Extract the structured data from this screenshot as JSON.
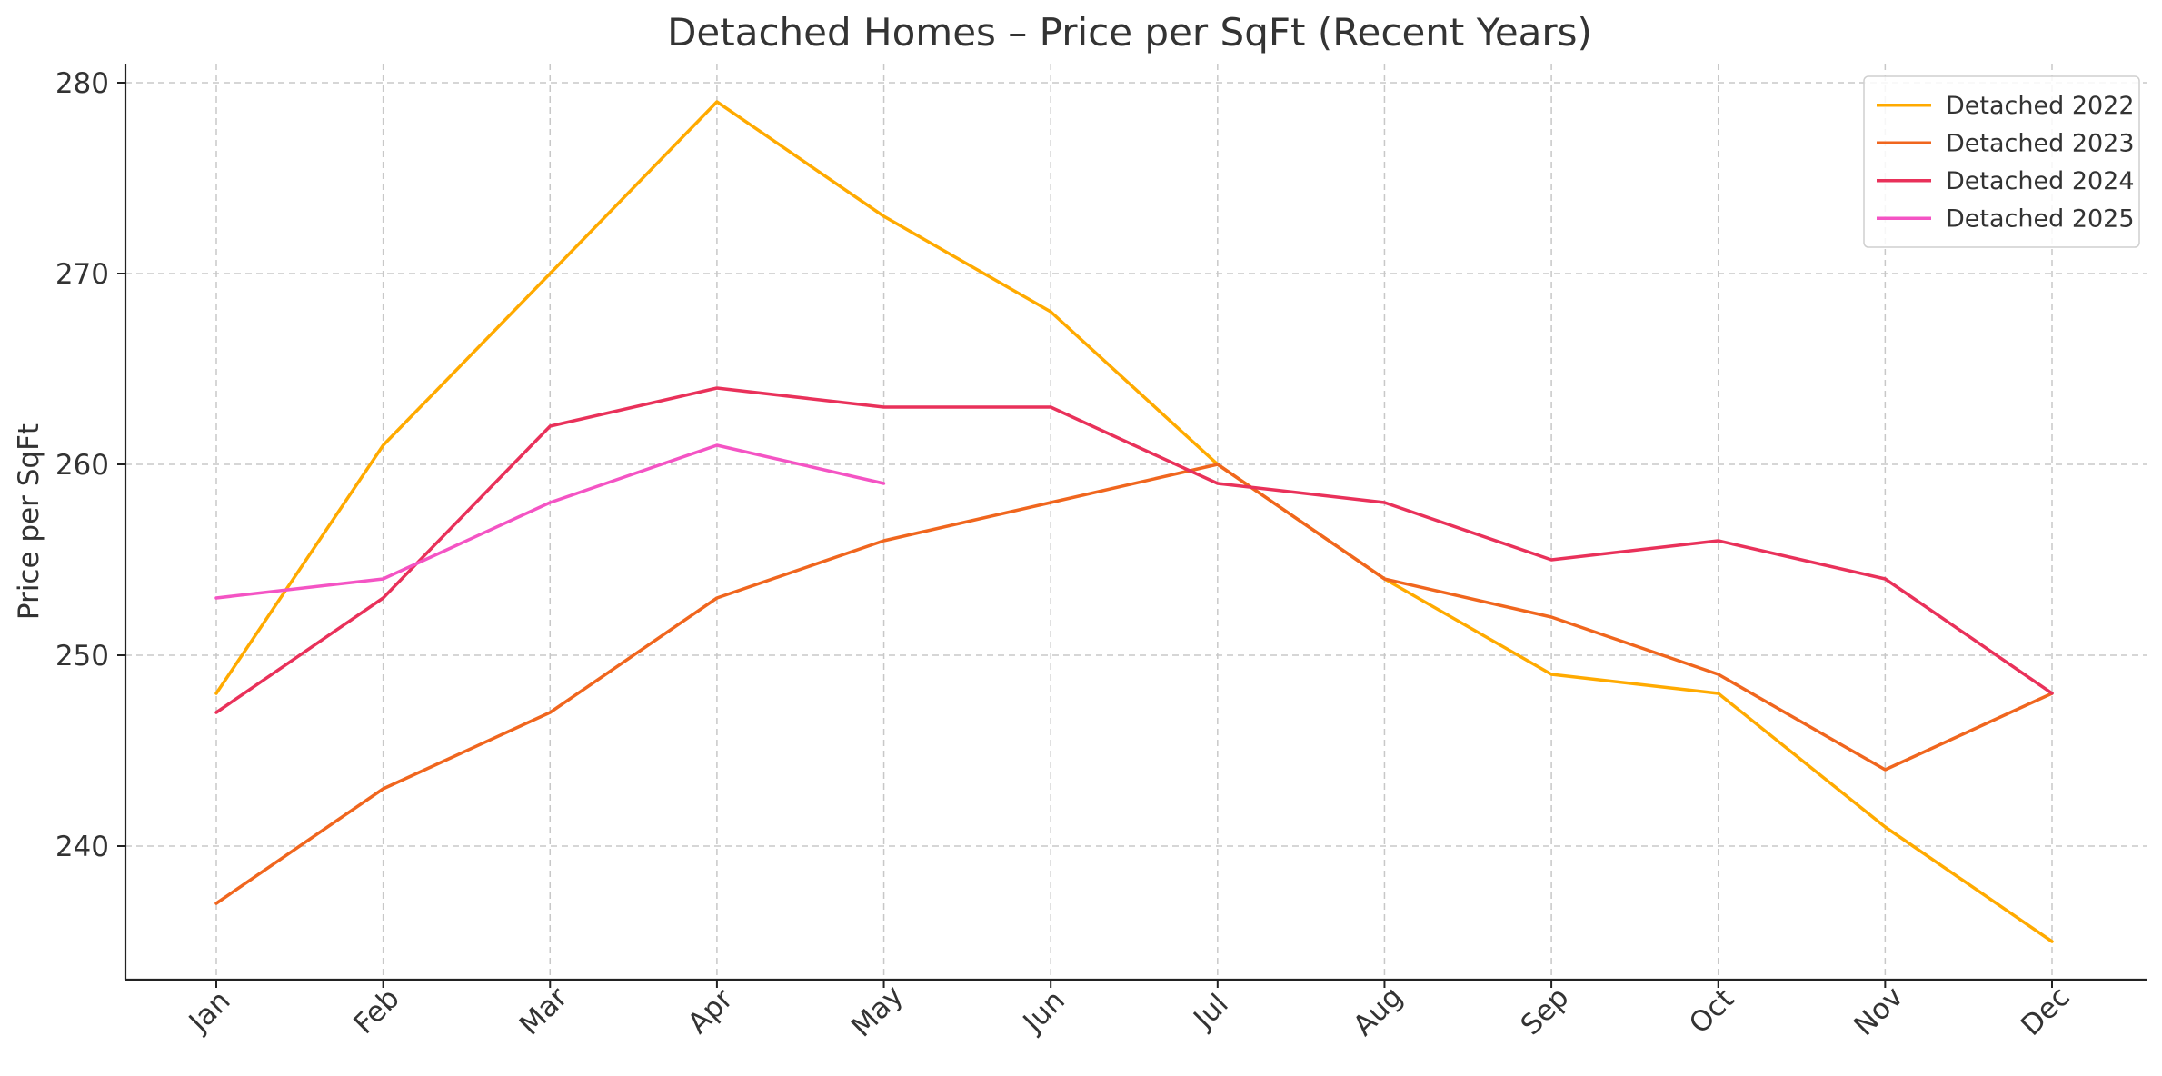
{
  "chart_data": {
    "type": "line",
    "title": "Detached Homes – Price per SqFt (Recent Years)",
    "xlabel": "",
    "ylabel": "Price per SqFt",
    "categories": [
      "Jan",
      "Feb",
      "Mar",
      "Apr",
      "May",
      "Jun",
      "Jul",
      "Aug",
      "Sep",
      "Oct",
      "Nov",
      "Dec"
    ],
    "ylim": [
      233,
      281
    ],
    "yticks": [
      240,
      250,
      260,
      270,
      280
    ],
    "grid": true,
    "legend_position": "top-right",
    "series": [
      {
        "name": "Detached 2022",
        "color": "#ffaa00",
        "values": [
          248,
          261,
          270,
          279,
          273,
          268,
          260,
          254,
          249,
          248,
          241,
          235
        ]
      },
      {
        "name": "Detached 2023",
        "color": "#f0661e",
        "values": [
          237,
          243,
          247,
          253,
          256,
          258,
          260,
          254,
          252,
          249,
          244,
          248
        ]
      },
      {
        "name": "Detached 2024",
        "color": "#e9315a",
        "values": [
          247,
          253,
          262,
          264,
          263,
          263,
          259,
          258,
          255,
          256,
          254,
          248
        ]
      },
      {
        "name": "Detached 2025",
        "color": "#f454c4",
        "values": [
          253,
          254,
          258,
          261,
          259,
          null,
          null,
          null,
          null,
          null,
          null,
          null
        ]
      }
    ]
  }
}
